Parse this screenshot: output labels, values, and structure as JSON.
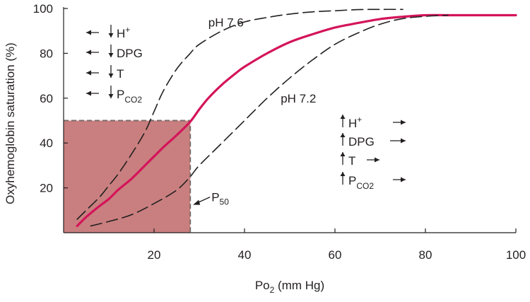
{
  "colors": {
    "main_curve": "#d4145a",
    "shift_curves": "#231f20",
    "p50_fill": "#c97f7f",
    "p50_border": "#7a6a6a",
    "axis": "#231f20"
  },
  "chart_data": {
    "type": "line",
    "xlabel": {
      "main": "Po",
      "sub": "2",
      "rest": " (mm Hg)"
    },
    "ylabel": "Oxyhemoglobin saturation (%)",
    "xlim": [
      0,
      100
    ],
    "ylim": [
      0,
      100
    ],
    "xticks": [
      20,
      40,
      60,
      80,
      100
    ],
    "yticks": [
      20,
      40,
      60,
      80,
      100
    ],
    "grid": false,
    "series": [
      {
        "name": "pH 7.6",
        "style": "dashed",
        "x": [
          3,
          5,
          8,
          10,
          12,
          15,
          18,
          20,
          22,
          25,
          28,
          30,
          35,
          40,
          45,
          50,
          55,
          60,
          65,
          70,
          75
        ],
        "y": [
          6,
          10,
          16,
          21,
          26,
          35,
          45,
          54,
          63,
          73,
          80,
          84,
          90,
          94,
          96,
          97.5,
          98.5,
          99,
          99.5,
          99.6,
          99.6
        ]
      },
      {
        "name": "",
        "style": "solid",
        "x": [
          3,
          5,
          8,
          10,
          12,
          15,
          18,
          20,
          22,
          25,
          28,
          30,
          32,
          35,
          38,
          40,
          45,
          50,
          55,
          60,
          65,
          70,
          75,
          80,
          85,
          90,
          95,
          100
        ],
        "y": [
          3,
          7,
          12,
          15,
          19,
          24,
          30,
          34,
          38,
          43.5,
          49.5,
          55,
          60,
          66,
          71,
          74,
          80,
          85,
          88.5,
          91.5,
          93.5,
          95.3,
          96.3,
          97,
          97,
          97,
          97,
          97
        ]
      },
      {
        "name": "pH 7.2",
        "style": "dashed",
        "x": [
          6,
          10,
          15,
          20,
          25,
          28,
          30,
          35,
          40,
          45,
          50,
          55,
          60,
          65,
          70,
          75,
          80,
          85
        ],
        "y": [
          3,
          5,
          8,
          13,
          19,
          25,
          30,
          40,
          50,
          60,
          69,
          77,
          84,
          89,
          93,
          95.5,
          96.5,
          97
        ]
      }
    ],
    "p50": {
      "label": "P",
      "label_sub": "50",
      "x": 28,
      "y": 50
    },
    "annotations": {
      "series_labels": [
        {
          "text": "pH 7.6",
          "x": 32,
          "y": 92
        },
        {
          "text": "pH 7.2",
          "x": 48,
          "y": 58
        }
      ],
      "left_shift": [
        {
          "main": "H",
          "sup": "+",
          "sub": ""
        },
        {
          "main": "DPG",
          "sup": "",
          "sub": ""
        },
        {
          "main": "T",
          "sup": "",
          "sub": ""
        },
        {
          "main": "P",
          "sup": "",
          "sub": "CO2"
        }
      ],
      "right_shift": [
        {
          "main": "H",
          "sup": "+",
          "sub": ""
        },
        {
          "main": "DPG",
          "sup": "",
          "sub": ""
        },
        {
          "main": "T",
          "sup": "",
          "sub": ""
        },
        {
          "main": "P",
          "sup": "",
          "sub": "CO2"
        }
      ]
    }
  }
}
